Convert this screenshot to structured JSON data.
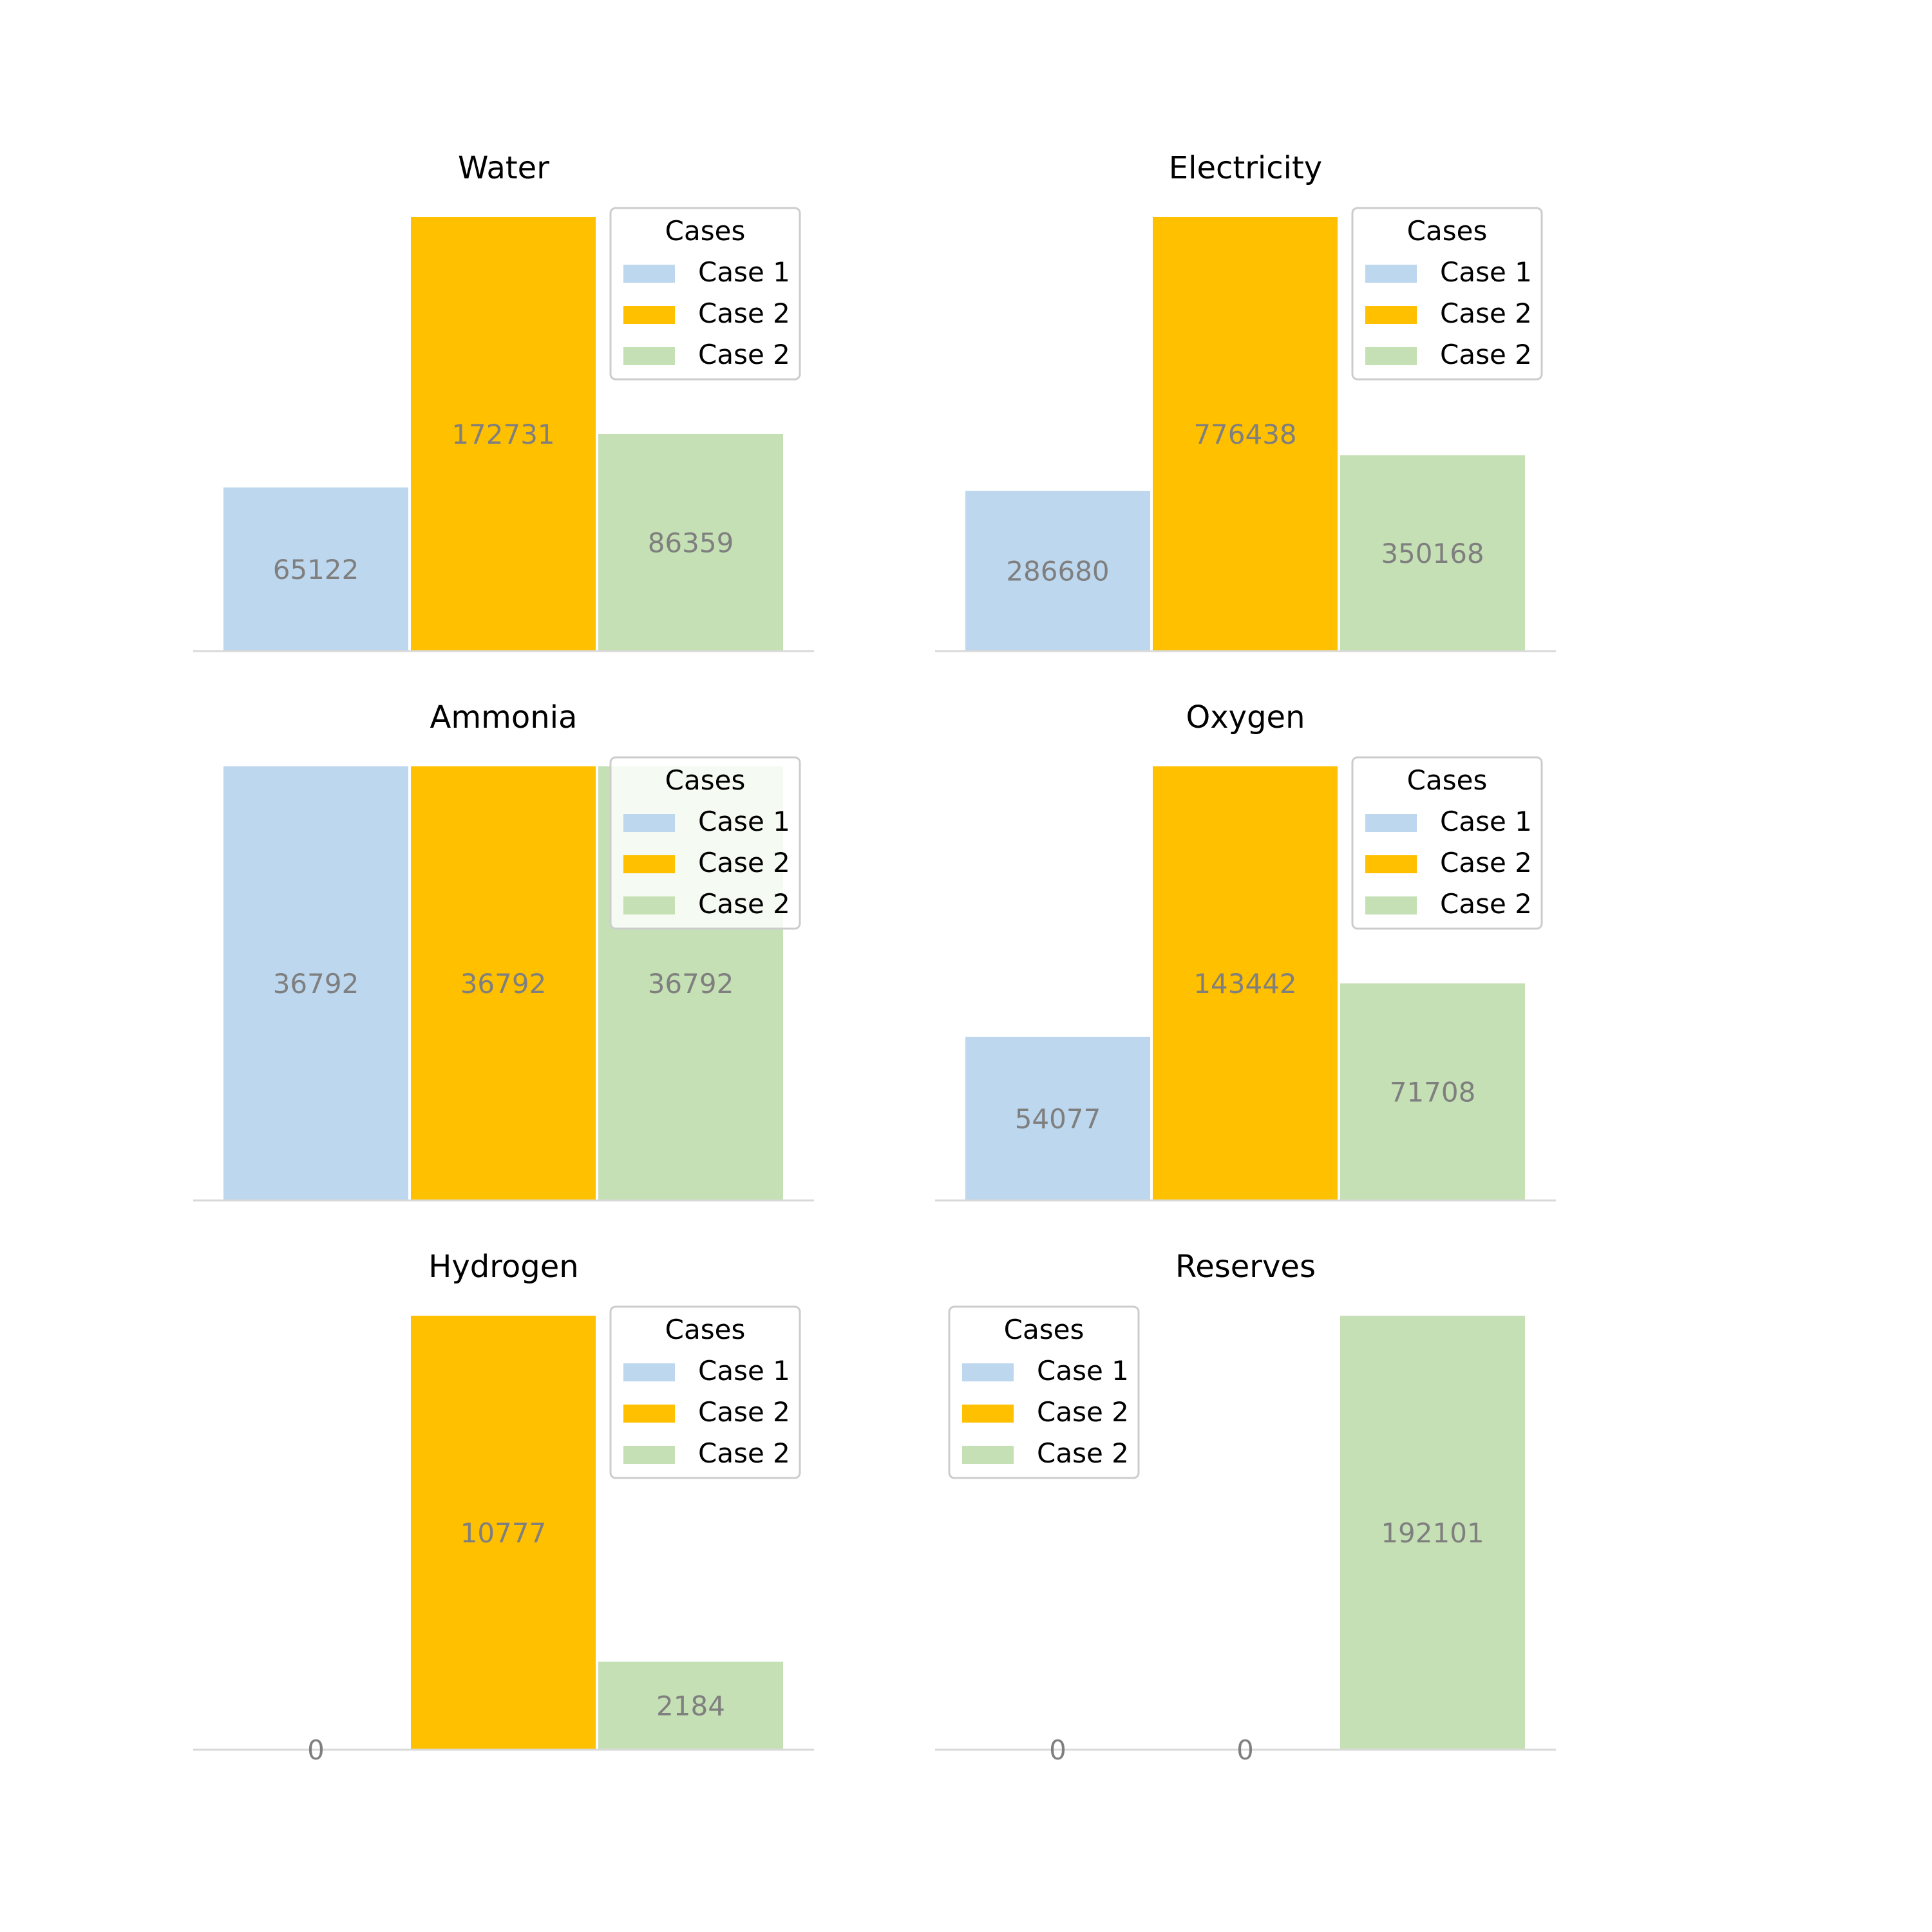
{
  "chart_data": [
    {
      "type": "bar",
      "title": "Water",
      "categories": [
        "Case 1",
        "Case 2",
        "Case 2"
      ],
      "values": [
        65122,
        172731,
        86359
      ],
      "colors": [
        "#bdd7ee",
        "#ffc000",
        "#c5e0b4"
      ],
      "legend": {
        "title": "Cases",
        "position": "top-right",
        "labels": [
          "Case 1",
          "Case 2",
          "Case 2"
        ]
      },
      "grid": false
    },
    {
      "type": "bar",
      "title": "Electricity",
      "categories": [
        "Case 1",
        "Case 2",
        "Case 2"
      ],
      "values": [
        286680,
        776438,
        350168
      ],
      "colors": [
        "#bdd7ee",
        "#ffc000",
        "#c5e0b4"
      ],
      "legend": {
        "title": "Cases",
        "position": "top-right",
        "labels": [
          "Case 1",
          "Case 2",
          "Case 2"
        ]
      },
      "grid": false
    },
    {
      "type": "bar",
      "title": "Ammonia",
      "categories": [
        "Case 1",
        "Case 2",
        "Case 2"
      ],
      "values": [
        36792,
        36792,
        36792
      ],
      "colors": [
        "#bdd7ee",
        "#ffc000",
        "#c5e0b4"
      ],
      "legend": {
        "title": "Cases",
        "position": "top-right",
        "labels": [
          "Case 1",
          "Case 2",
          "Case 2"
        ]
      },
      "grid": false
    },
    {
      "type": "bar",
      "title": "Oxygen",
      "categories": [
        "Case 1",
        "Case 2",
        "Case 2"
      ],
      "values": [
        54077,
        143442,
        71708
      ],
      "colors": [
        "#bdd7ee",
        "#ffc000",
        "#c5e0b4"
      ],
      "legend": {
        "title": "Cases",
        "position": "top-right",
        "labels": [
          "Case 1",
          "Case 2",
          "Case 2"
        ]
      },
      "grid": false
    },
    {
      "type": "bar",
      "title": "Hydrogen",
      "categories": [
        "Case 1",
        "Case 2",
        "Case 2"
      ],
      "values": [
        0,
        10777,
        2184
      ],
      "colors": [
        "#bdd7ee",
        "#ffc000",
        "#c5e0b4"
      ],
      "legend": {
        "title": "Cases",
        "position": "top-right",
        "labels": [
          "Case 1",
          "Case 2",
          "Case 2"
        ]
      },
      "grid": false
    },
    {
      "type": "bar",
      "title": "Reserves",
      "categories": [
        "Case 1",
        "Case 2",
        "Case 2"
      ],
      "values": [
        0,
        0,
        192101
      ],
      "colors": [
        "#bdd7ee",
        "#ffc000",
        "#c5e0b4"
      ],
      "legend": {
        "title": "Cases",
        "position": "top-left",
        "labels": [
          "Case 1",
          "Case 2",
          "Case 2"
        ]
      },
      "grid": false
    }
  ]
}
